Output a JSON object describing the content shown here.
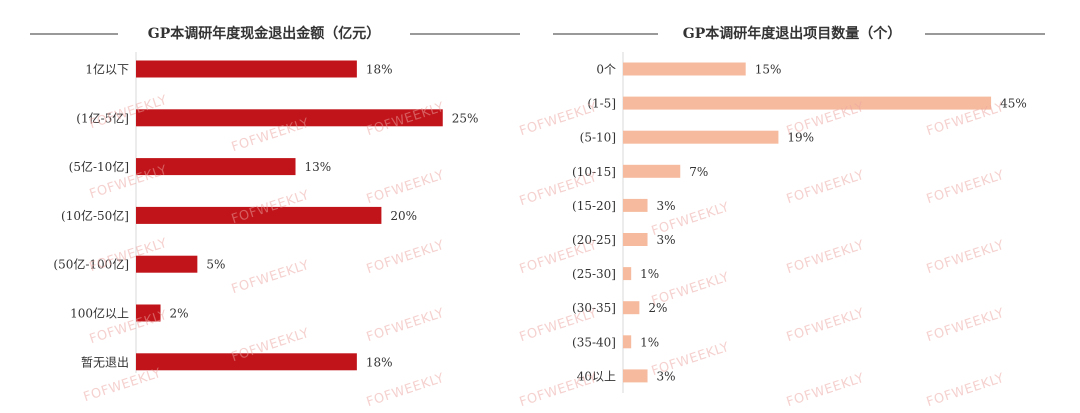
{
  "watermark": "FOFWEEKLY",
  "chart_data": [
    {
      "type": "bar",
      "orientation": "horizontal",
      "title": "GP本调研年度现金退出金额（亿元）",
      "categories": [
        "1亿以下",
        "(1亿-5亿]",
        "(5亿-10亿]",
        "(10亿-50亿]",
        "(50亿-100亿]",
        "100亿以上",
        "暂无退出"
      ],
      "values": [
        18,
        25,
        13,
        20,
        5,
        2,
        18
      ],
      "value_labels": [
        "18%",
        "25%",
        "13%",
        "20%",
        "5%",
        "2%",
        "18%"
      ],
      "unit": "%",
      "color": "#c0141a"
    },
    {
      "type": "bar",
      "orientation": "horizontal",
      "title": "GP本调研年度退出项目数量（个）",
      "categories": [
        "0个",
        "(1-5]",
        "(5-10]",
        "(10-15]",
        "(15-20]",
        "(20-25]",
        "(25-30]",
        "(30-35]",
        "(35-40]",
        "40以上"
      ],
      "values": [
        15,
        45,
        19,
        7,
        3,
        3,
        1,
        2,
        1,
        3
      ],
      "value_labels": [
        "15%",
        "45%",
        "19%",
        "7%",
        "3%",
        "3%",
        "1%",
        "2%",
        "1%",
        "3%"
      ],
      "unit": "%",
      "color": "#f6bb9f"
    }
  ]
}
